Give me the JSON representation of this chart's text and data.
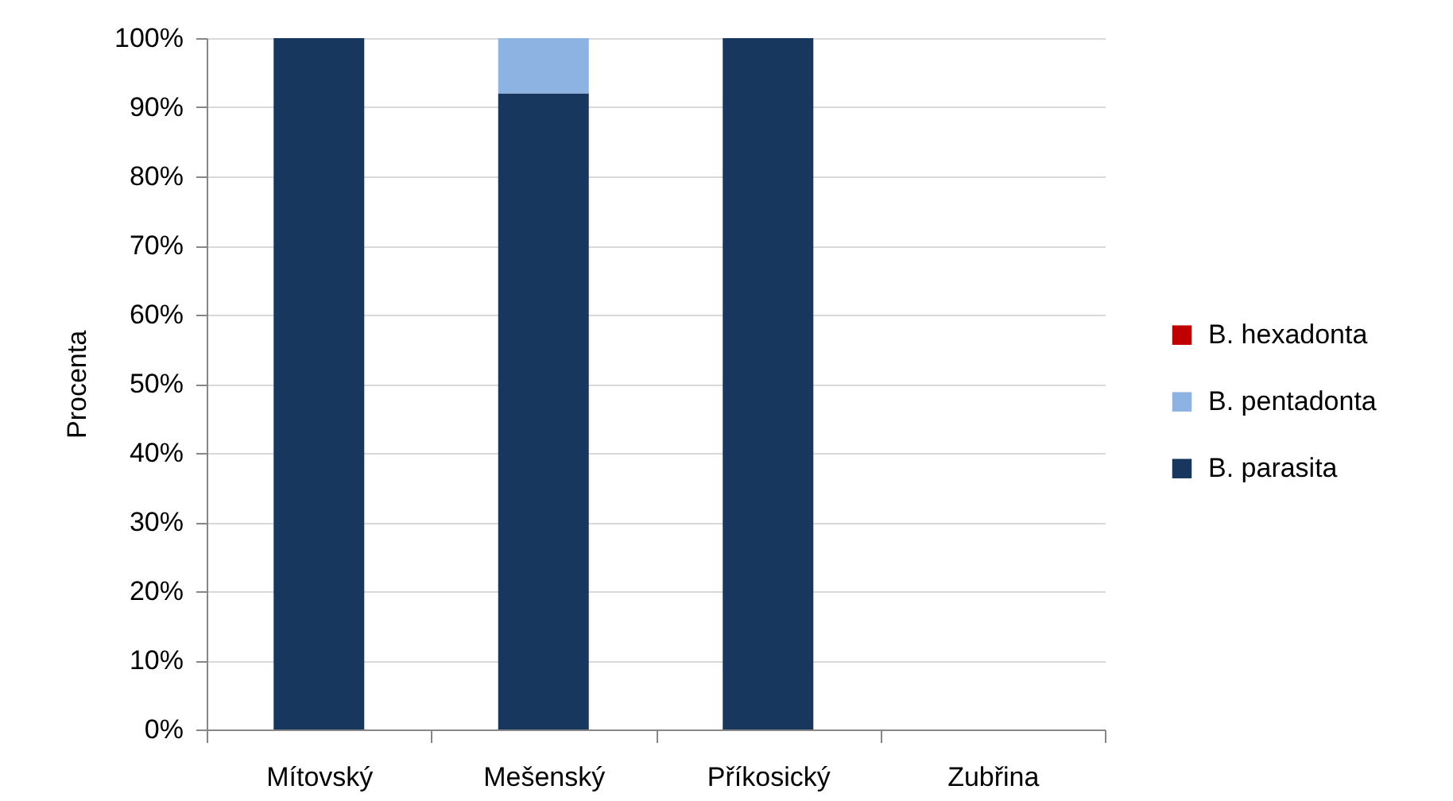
{
  "chart_data": {
    "type": "bar",
    "stacked": true,
    "ylabel": "Procenta",
    "categories": [
      "Mítovský",
      "Mešenský",
      "Příkosický",
      "Zubřina"
    ],
    "series": [
      {
        "name": "B. parasita",
        "color": "#17375e",
        "values": [
          100,
          92,
          100,
          null
        ]
      },
      {
        "name": "B. pentadonta",
        "color": "#8db3e2",
        "values": [
          0,
          8,
          0,
          null
        ]
      },
      {
        "name": "B. hexadonta",
        "color": "#c00000",
        "values": [
          0,
          0,
          0,
          null
        ]
      }
    ],
    "ylim": [
      0,
      100
    ],
    "yticks": [
      {
        "value": 0,
        "label": "0%"
      },
      {
        "value": 10,
        "label": "10%"
      },
      {
        "value": 20,
        "label": "20%"
      },
      {
        "value": 30,
        "label": "30%"
      },
      {
        "value": 40,
        "label": "40%"
      },
      {
        "value": 50,
        "label": "50%"
      },
      {
        "value": 60,
        "label": "60%"
      },
      {
        "value": 70,
        "label": "70%"
      },
      {
        "value": 80,
        "label": "80%"
      },
      {
        "value": 90,
        "label": "90%"
      },
      {
        "value": 100,
        "label": "100%"
      }
    ],
    "grid": "y",
    "legend": "right"
  }
}
